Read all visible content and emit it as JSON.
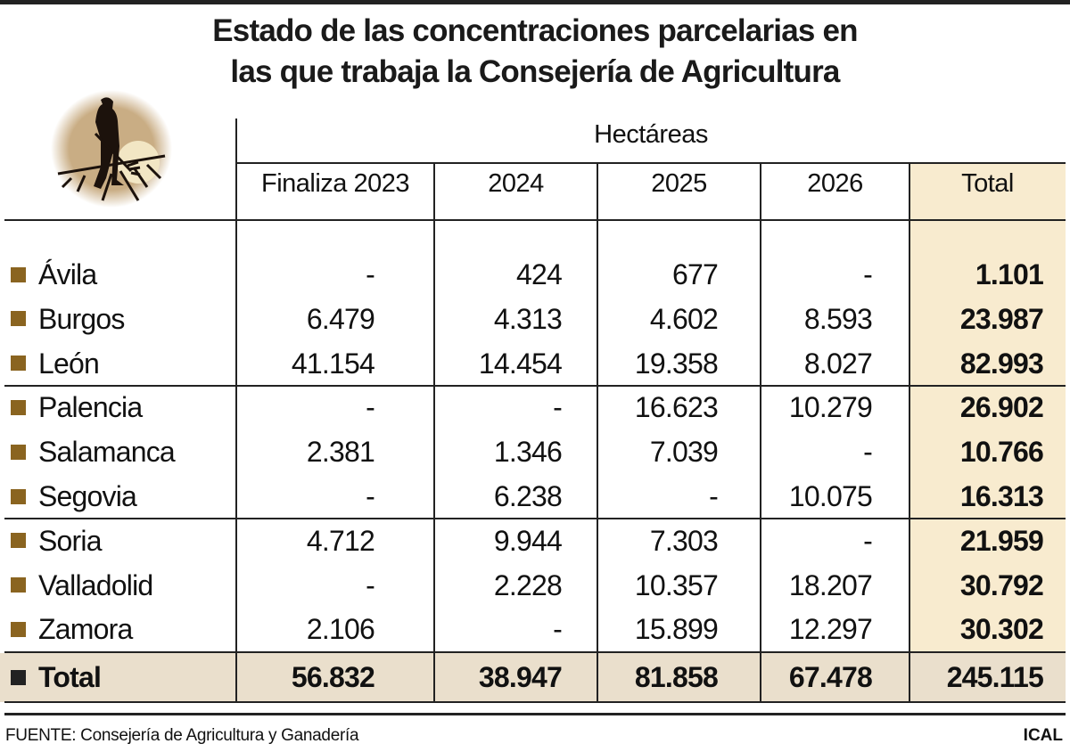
{
  "title_lines": [
    "Estado de las concentraciones parcelarias en",
    "las que trabaja la Consejería de Agricultura"
  ],
  "colors": {
    "marker": "#8a6420",
    "total_marker": "#222222",
    "total_column_bg": "#f8ebcf",
    "total_row_bg": "#eadfcc"
  },
  "logo_icon": "farmer-with-pitchfork-silhouette",
  "chart_data": {
    "type": "table",
    "group_header": "Hectáreas",
    "columns": [
      "Finaliza 2023",
      "2024",
      "2025",
      "2026",
      "Total"
    ],
    "rows": [
      {
        "label": "Ávila",
        "values": [
          "-",
          "424",
          "677",
          "-",
          "1.101"
        ]
      },
      {
        "label": "Burgos",
        "values": [
          "6.479",
          "4.313",
          "4.602",
          "8.593",
          "23.987"
        ]
      },
      {
        "label": "León",
        "values": [
          "41.154",
          "14.454",
          "19.358",
          "8.027",
          "82.993"
        ]
      },
      {
        "label": "Palencia",
        "values": [
          "-",
          "-",
          "16.623",
          "10.279",
          "26.902"
        ]
      },
      {
        "label": "Salamanca",
        "values": [
          "2.381",
          "1.346",
          "7.039",
          "-",
          "10.766"
        ]
      },
      {
        "label": "Segovia",
        "values": [
          "-",
          "6.238",
          "-",
          "10.075",
          "16.313"
        ]
      },
      {
        "label": "Soria",
        "values": [
          "4.712",
          "9.944",
          "7.303",
          "-",
          "21.959"
        ]
      },
      {
        "label": "Valladolid",
        "values": [
          "-",
          "2.228",
          "10.357",
          "18.207",
          "30.792"
        ]
      },
      {
        "label": "Zamora",
        "values": [
          "2.106",
          "-",
          "15.899",
          "12.297",
          "30.302"
        ]
      }
    ],
    "total": {
      "label": "Total",
      "values": [
        "56.832",
        "38.947",
        "81.858",
        "67.478",
        "245.115"
      ]
    }
  },
  "source": "FUENTE: Consejería de Agricultura y Ganadería",
  "agency": "ICAL"
}
